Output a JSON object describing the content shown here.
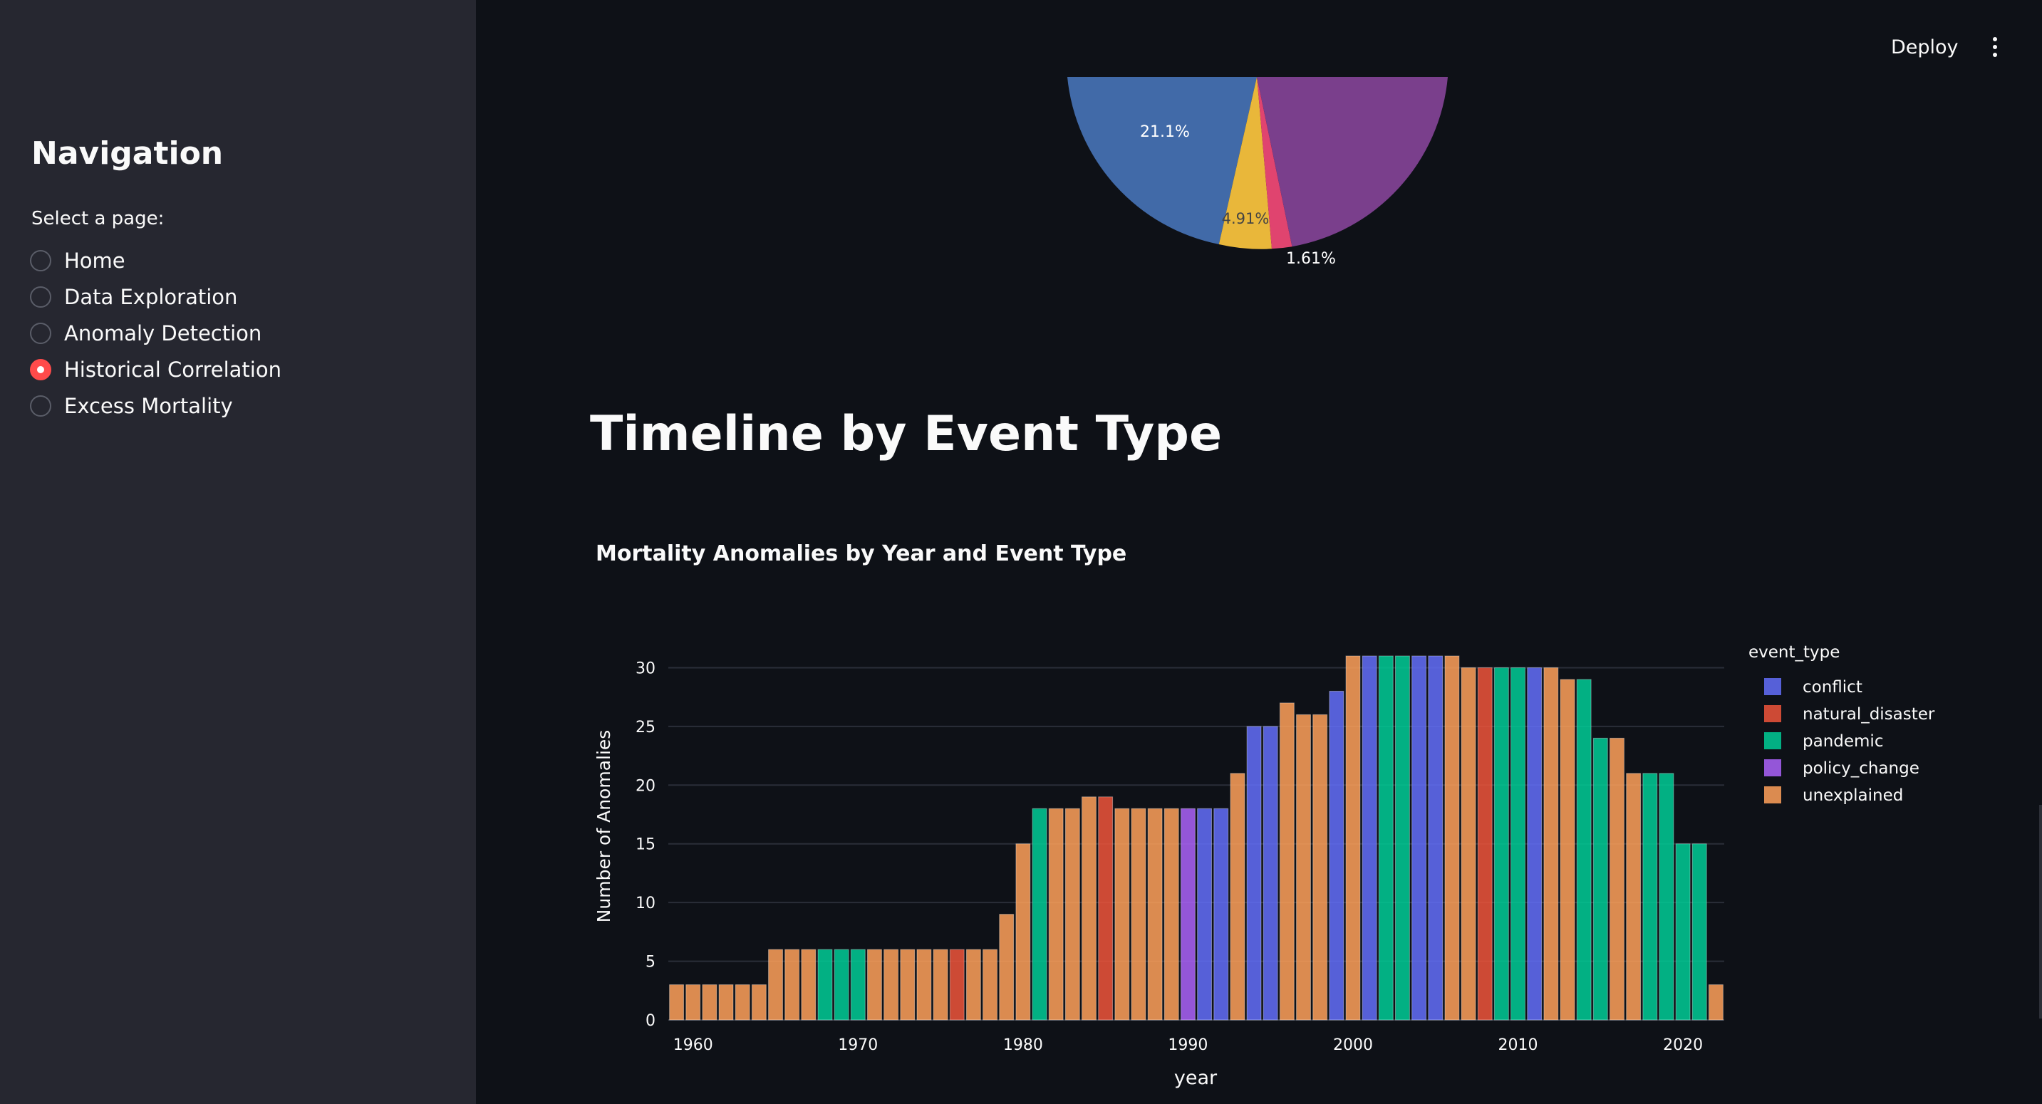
{
  "sidebar": {
    "title": "Navigation",
    "select_label": "Select a page:",
    "pages": [
      {
        "label": "Home",
        "selected": false
      },
      {
        "label": "Data Exploration",
        "selected": false
      },
      {
        "label": "Anomaly Detection",
        "selected": false
      },
      {
        "label": "Historical Correlation",
        "selected": true
      },
      {
        "label": "Excess Mortality",
        "selected": false
      }
    ]
  },
  "header": {
    "deploy_label": "Deploy",
    "menu_icon": "vertical-dots-icon"
  },
  "pie": {
    "slices": [
      {
        "label": "21.1%",
        "color": "#416aa8"
      },
      {
        "label": "4.91%",
        "color": "#e9b73a"
      },
      {
        "label": "1.61%",
        "color": "#e0446f"
      },
      {
        "label": "",
        "color": "#7a3f8c"
      }
    ]
  },
  "section": {
    "heading": "Timeline by Event Type"
  },
  "chart_data": {
    "type": "bar",
    "title": "Mortality Anomalies by Year and Event Type",
    "xlabel": "year",
    "ylabel": "Number of Anomalies",
    "ylim": [
      0,
      33
    ],
    "yticks": [
      0,
      5,
      10,
      15,
      20,
      25,
      30
    ],
    "xticks": [
      1960,
      1970,
      1980,
      1990,
      2000,
      2010,
      2020
    ],
    "xlim": [
      1958.5,
      2022.5
    ],
    "grid": true,
    "legend": {
      "title": "event_type",
      "position": "right",
      "entries": [
        {
          "name": "conflict",
          "color": "#636efa"
        },
        {
          "name": "natural_disaster",
          "color": "#ef553b"
        },
        {
          "name": "pandemic",
          "color": "#00cc96"
        },
        {
          "name": "policy_change",
          "color": "#ab63fa"
        },
        {
          "name": "unexplained",
          "color": "#ffa15a"
        }
      ]
    },
    "bars": [
      {
        "year": 1959,
        "value": 3,
        "event_type": "unexplained"
      },
      {
        "year": 1960,
        "value": 3,
        "event_type": "unexplained"
      },
      {
        "year": 1961,
        "value": 3,
        "event_type": "unexplained"
      },
      {
        "year": 1962,
        "value": 3,
        "event_type": "unexplained"
      },
      {
        "year": 1963,
        "value": 3,
        "event_type": "unexplained"
      },
      {
        "year": 1964,
        "value": 3,
        "event_type": "unexplained"
      },
      {
        "year": 1965,
        "value": 6,
        "event_type": "unexplained"
      },
      {
        "year": 1966,
        "value": 6,
        "event_type": "unexplained"
      },
      {
        "year": 1967,
        "value": 6,
        "event_type": "unexplained"
      },
      {
        "year": 1968,
        "value": 6,
        "event_type": "pandemic"
      },
      {
        "year": 1969,
        "value": 6,
        "event_type": "pandemic"
      },
      {
        "year": 1970,
        "value": 6,
        "event_type": "pandemic"
      },
      {
        "year": 1971,
        "value": 6,
        "event_type": "unexplained"
      },
      {
        "year": 1972,
        "value": 6,
        "event_type": "unexplained"
      },
      {
        "year": 1973,
        "value": 6,
        "event_type": "unexplained"
      },
      {
        "year": 1974,
        "value": 6,
        "event_type": "unexplained"
      },
      {
        "year": 1975,
        "value": 6,
        "event_type": "unexplained"
      },
      {
        "year": 1976,
        "value": 6,
        "event_type": "natural_disaster"
      },
      {
        "year": 1977,
        "value": 6,
        "event_type": "unexplained"
      },
      {
        "year": 1978,
        "value": 6,
        "event_type": "unexplained"
      },
      {
        "year": 1979,
        "value": 9,
        "event_type": "unexplained"
      },
      {
        "year": 1980,
        "value": 15,
        "event_type": "unexplained"
      },
      {
        "year": 1981,
        "value": 18,
        "event_type": "pandemic"
      },
      {
        "year": 1982,
        "value": 18,
        "event_type": "unexplained"
      },
      {
        "year": 1983,
        "value": 18,
        "event_type": "unexplained"
      },
      {
        "year": 1984,
        "value": 19,
        "event_type": "unexplained"
      },
      {
        "year": 1985,
        "value": 19,
        "event_type": "natural_disaster"
      },
      {
        "year": 1986,
        "value": 18,
        "event_type": "unexplained"
      },
      {
        "year": 1987,
        "value": 18,
        "event_type": "unexplained"
      },
      {
        "year": 1988,
        "value": 18,
        "event_type": "unexplained"
      },
      {
        "year": 1989,
        "value": 18,
        "event_type": "unexplained"
      },
      {
        "year": 1990,
        "value": 18,
        "event_type": "policy_change"
      },
      {
        "year": 1991,
        "value": 18,
        "event_type": "conflict"
      },
      {
        "year": 1992,
        "value": 18,
        "event_type": "conflict"
      },
      {
        "year": 1993,
        "value": 21,
        "event_type": "unexplained"
      },
      {
        "year": 1994,
        "value": 25,
        "event_type": "conflict"
      },
      {
        "year": 1995,
        "value": 25,
        "event_type": "conflict"
      },
      {
        "year": 1996,
        "value": 27,
        "event_type": "unexplained"
      },
      {
        "year": 1997,
        "value": 26,
        "event_type": "unexplained"
      },
      {
        "year": 1998,
        "value": 26,
        "event_type": "unexplained"
      },
      {
        "year": 1999,
        "value": 28,
        "event_type": "conflict"
      },
      {
        "year": 2000,
        "value": 31,
        "event_type": "unexplained"
      },
      {
        "year": 2001,
        "value": 31,
        "event_type": "conflict"
      },
      {
        "year": 2002,
        "value": 31,
        "event_type": "pandemic"
      },
      {
        "year": 2003,
        "value": 31,
        "event_type": "pandemic"
      },
      {
        "year": 2004,
        "value": 31,
        "event_type": "conflict"
      },
      {
        "year": 2005,
        "value": 31,
        "event_type": "conflict"
      },
      {
        "year": 2006,
        "value": 31,
        "event_type": "unexplained"
      },
      {
        "year": 2007,
        "value": 30,
        "event_type": "unexplained"
      },
      {
        "year": 2008,
        "value": 30,
        "event_type": "natural_disaster"
      },
      {
        "year": 2009,
        "value": 30,
        "event_type": "pandemic"
      },
      {
        "year": 2010,
        "value": 30,
        "event_type": "pandemic"
      },
      {
        "year": 2011,
        "value": 30,
        "event_type": "conflict"
      },
      {
        "year": 2012,
        "value": 30,
        "event_type": "unexplained"
      },
      {
        "year": 2013,
        "value": 29,
        "event_type": "unexplained"
      },
      {
        "year": 2014,
        "value": 29,
        "event_type": "pandemic"
      },
      {
        "year": 2015,
        "value": 24,
        "event_type": "pandemic"
      },
      {
        "year": 2016,
        "value": 24,
        "event_type": "unexplained"
      },
      {
        "year": 2017,
        "value": 21,
        "event_type": "unexplained"
      },
      {
        "year": 2018,
        "value": 21,
        "event_type": "pandemic"
      },
      {
        "year": 2019,
        "value": 21,
        "event_type": "pandemic"
      },
      {
        "year": 2020,
        "value": 15,
        "event_type": "pandemic"
      },
      {
        "year": 2021,
        "value": 15,
        "event_type": "pandemic"
      },
      {
        "year": 2022,
        "value": 3,
        "event_type": "unexplained"
      }
    ]
  }
}
